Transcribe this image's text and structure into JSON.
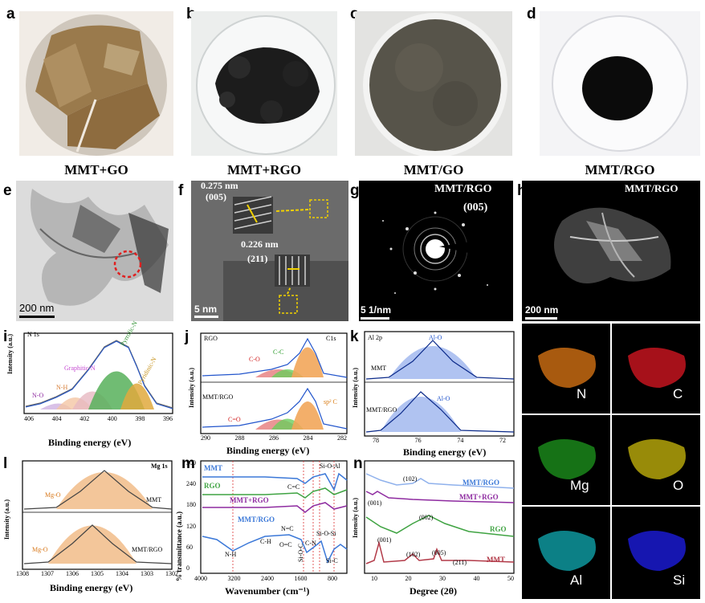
{
  "panels": {
    "a": {
      "label": "a",
      "caption": "MMT+GO"
    },
    "b": {
      "label": "b",
      "caption": "MMT+RGO"
    },
    "c": {
      "label": "c",
      "caption": "MMT/GO"
    },
    "d": {
      "label": "d",
      "caption": "MMT/RGO"
    },
    "e": {
      "label": "e",
      "scale": "200 nm"
    },
    "f": {
      "label": "f",
      "scale": "5 nm",
      "d1": "0.275 nm",
      "h1": "(005)",
      "d2": "0.226 nm",
      "h2": "(211)"
    },
    "g": {
      "label": "g",
      "title": "MMT/RGO",
      "hkl": "(005)",
      "scale": "5 1/nm"
    },
    "h": {
      "label": "h",
      "title": "MMT/RGO",
      "scale": "200 nm"
    },
    "maps": [
      "N",
      "C",
      "Mg",
      "O",
      "Al",
      "Si"
    ]
  },
  "xps_i": {
    "label": "i",
    "tag": "N 1s",
    "peaks": [
      "N-O",
      "N-H",
      "Graphitic-N",
      "Pyrrolic-N",
      "Pyridinic-N"
    ],
    "xlabel": "Binding energy (eV)",
    "ylabel": "Intensity (a.u.)",
    "ticks": [
      "406",
      "404",
      "402",
      "400",
      "398",
      "396"
    ]
  },
  "xps_j": {
    "label": "j",
    "tag_top": "RGO",
    "tag_c": "C1s",
    "tag_bottom": "MMT/RGO",
    "peaks_top": [
      "C-O",
      "C-C"
    ],
    "peaks_bottom": [
      "C=O",
      "sp² C"
    ],
    "xlabel": "Binding energy (eV)",
    "ylabel": "Intensity (a.u.)",
    "ticks": [
      "290",
      "288",
      "286",
      "284",
      "282"
    ]
  },
  "xps_k": {
    "label": "k",
    "tag": "Al 2p",
    "top": "MMT",
    "bottom": "MMT/RGO",
    "peak": "Al-O",
    "xlabel": "Binding energy (eV)",
    "ylabel": "Intensity (a.u.)",
    "ticks": [
      "78",
      "76",
      "74",
      "72"
    ]
  },
  "xps_l": {
    "label": "l",
    "tag": "Mg 1s",
    "top": "MMT",
    "bottom": "MMT/RGO",
    "peak": "Mg-O",
    "xlabel": "Binding energy (eV)",
    "ylabel": "Intensity (a.u.)",
    "ticks": [
      "1308",
      "1307",
      "1306",
      "1305",
      "1304",
      "1303",
      "1302"
    ]
  },
  "ftir_m": {
    "label": "m",
    "series": [
      "MMT",
      "RGO",
      "MMT+RGO",
      "MMT/RGO"
    ],
    "bands": [
      "N-H",
      "C-H",
      "N=C",
      "O=C",
      "C=C",
      "Si-O-C",
      "C-N",
      "Si-O-Al",
      "Si-O-Si",
      "Si-C"
    ],
    "xlabel": "Wavenumber (cm⁻¹)",
    "ylabel": "% transmittance (a.u.)",
    "xticks": [
      "4000",
      "3200",
      "2400",
      "1600",
      "800"
    ],
    "yticks": [
      "300",
      "240",
      "180",
      "120",
      "60",
      "0"
    ]
  },
  "xrd_n": {
    "label": "n",
    "series": [
      "MMT/RGO",
      "MMT+RGO",
      "RGO",
      "MMT"
    ],
    "peaks": [
      "(102)",
      "(001)",
      "(002)",
      "(001)",
      "(102)",
      "(005)",
      "(211)"
    ],
    "xlabel": "Degree (2θ)",
    "ylabel": "Intensity (a.u.)",
    "ticks": [
      "10",
      "20",
      "30",
      "40",
      "50"
    ]
  },
  "colors": {
    "green": "#3fa342",
    "purple": "#8e2ba0",
    "blue": "#3b78d8",
    "red": "#b23a48",
    "orange": "#e9a862",
    "lightblue": "#8fb1ec"
  }
}
